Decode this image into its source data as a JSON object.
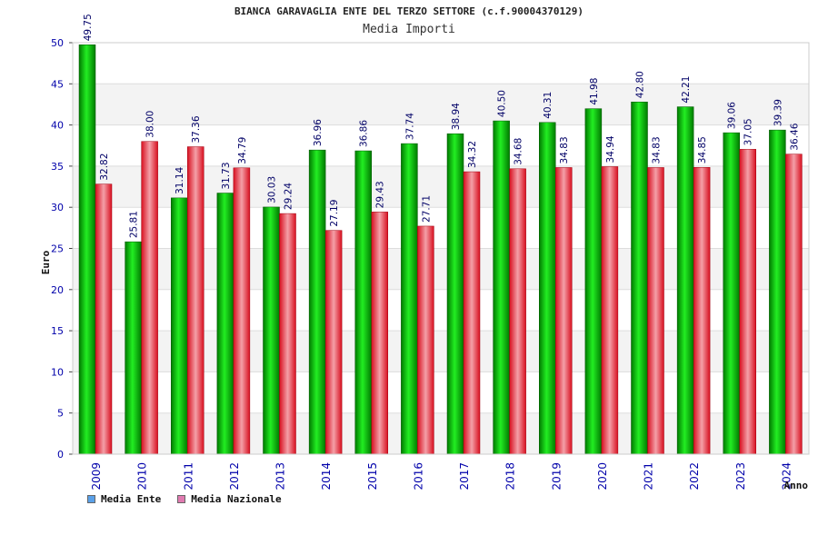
{
  "title": "BIANCA GARAVAGLIA ENTE DEL TERZO SETTORE (c.f.90004370129)",
  "subtitle": "Media Importi",
  "colors": {
    "ente": "#00c000",
    "nazionale": "#e8303a",
    "legend_ente": "#5aa0e8",
    "legend_nazionale": "#e07ab0",
    "axis_tick_text": "#0000aa"
  },
  "chart_data": {
    "type": "bar",
    "title": "BIANCA GARAVAGLIA ENTE DEL TERZO SETTORE (c.f.90004370129)",
    "subtitle": "Media Importi",
    "xlabel": "Anno",
    "ylabel": "Euro",
    "ylim": [
      0,
      50
    ],
    "yticks": [
      0,
      5,
      10,
      15,
      20,
      25,
      30,
      35,
      40,
      45,
      50
    ],
    "grid": true,
    "legend_position": "bottom-left",
    "categories": [
      "2009",
      "2010",
      "2011",
      "2012",
      "2013",
      "2014",
      "2015",
      "2016",
      "2017",
      "2018",
      "2019",
      "2020",
      "2021",
      "2022",
      "2023",
      "2024"
    ],
    "series": [
      {
        "name": "Media Ente",
        "values": [
          49.75,
          25.81,
          31.14,
          31.73,
          30.03,
          36.96,
          36.86,
          37.74,
          38.94,
          40.5,
          40.31,
          41.98,
          42.8,
          42.21,
          39.06,
          39.39
        ],
        "labels": [
          "49.75",
          "25.81",
          "31.14",
          "31.73",
          "30.03",
          "36.96",
          "36.86",
          "37.74",
          "38.94",
          "40.50",
          "40.31",
          "41.98",
          "42.80",
          "42.21",
          "39.06",
          "39.39"
        ]
      },
      {
        "name": "Media Nazionale",
        "values": [
          32.82,
          38.0,
          37.36,
          34.79,
          29.24,
          27.19,
          29.43,
          27.71,
          34.32,
          34.68,
          34.83,
          34.94,
          34.83,
          34.85,
          37.05,
          36.46
        ],
        "labels": [
          "32.82",
          "38.00",
          "37.36",
          "34.79",
          "29.24",
          "27.19",
          "29.43",
          "27.71",
          "34.32",
          "34.68",
          "34.83",
          "34.94",
          "34.83",
          "34.85",
          "37.05",
          "36.46"
        ]
      }
    ]
  }
}
